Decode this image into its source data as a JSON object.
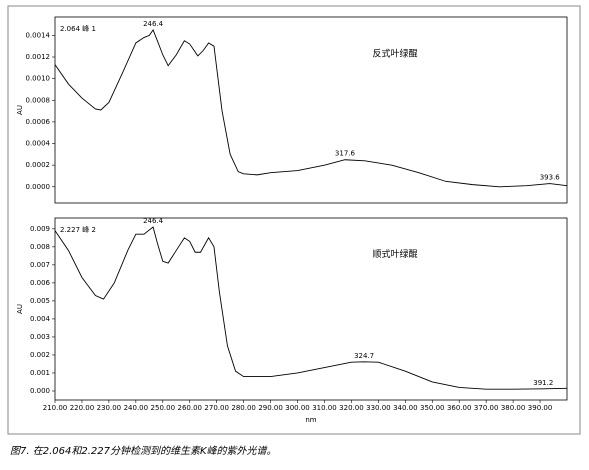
{
  "chart_data": [
    {
      "type": "line",
      "title": "2.064 峰 1",
      "ylabel": "AU",
      "x": [
        210,
        215,
        220,
        225,
        227,
        230,
        235,
        240,
        243,
        245,
        246.4,
        248,
        250,
        252,
        255,
        258,
        260,
        263,
        265,
        267,
        269,
        270,
        272,
        275,
        278,
        280,
        285,
        290,
        300,
        310,
        317.6,
        325,
        335,
        345,
        355,
        365,
        375,
        385,
        393.6,
        400
      ],
      "series": [
        {
          "name": "反式叶绿醌",
          "color": "#000000",
          "values": [
            0.00113,
            0.00095,
            0.00082,
            0.00072,
            0.00071,
            0.00078,
            0.00105,
            0.00133,
            0.00138,
            0.0014,
            0.00145,
            0.00135,
            0.00122,
            0.00112,
            0.00122,
            0.00135,
            0.00132,
            0.00121,
            0.00126,
            0.00133,
            0.0013,
            0.0011,
            0.0007,
            0.0003,
            0.00014,
            0.00012,
            0.00011,
            0.00013,
            0.00015,
            0.0002,
            0.00025,
            0.00024,
            0.0002,
            0.00013,
            5e-05,
            2e-05,
            0.0,
            1e-05,
            3e-05,
            1e-05
          ]
        }
      ],
      "peak_labels": [
        246.4,
        317.6,
        393.6
      ],
      "xlim": [
        210,
        400
      ],
      "ylim": [
        -0.00015,
        0.00157
      ],
      "yticks": [
        {
          "value": 0,
          "label": "0.0000"
        },
        {
          "value": 0.0002,
          "label": "0.0002"
        },
        {
          "value": 0.0004,
          "label": "0.0004"
        },
        {
          "value": 0.0006,
          "label": "0.0006"
        },
        {
          "value": 0.0008,
          "label": "0.0008"
        },
        {
          "value": 0.001,
          "label": "0.0010"
        },
        {
          "value": 0.0012,
          "label": "0.0012"
        },
        {
          "value": 0.0014,
          "label": "0.0014"
        }
      ]
    },
    {
      "type": "line",
      "title": "2.227 峰 2",
      "ylabel": "AU",
      "xlabel": "nm",
      "x": [
        210,
        215,
        220,
        225,
        228,
        232,
        237,
        240,
        243,
        246.4,
        248,
        250,
        252,
        255,
        258,
        260,
        262,
        264,
        267,
        269,
        271,
        274,
        277,
        280,
        290,
        300,
        310,
        320,
        324.7,
        330,
        340,
        350,
        360,
        370,
        380,
        391.2,
        400
      ],
      "series": [
        {
          "name": "顺式叶绿醌",
          "color": "#000000",
          "values": [
            0.0089,
            0.0078,
            0.0063,
            0.0053,
            0.0051,
            0.006,
            0.0078,
            0.0087,
            0.0087,
            0.0091,
            0.0082,
            0.0072,
            0.0071,
            0.0078,
            0.0085,
            0.0083,
            0.0077,
            0.0077,
            0.0085,
            0.008,
            0.0055,
            0.0025,
            0.0011,
            0.0008,
            0.0008,
            0.001,
            0.0013,
            0.0016,
            0.00162,
            0.0016,
            0.0011,
            0.0005,
            0.0002,
            0.0001,
            0.0001,
            0.00012,
            0.00015
          ]
        }
      ],
      "peak_labels": [
        246.4,
        324.7,
        391.2
      ],
      "xlim": [
        210,
        400
      ],
      "ylim": [
        -0.0005,
        0.0096
      ],
      "yticks": [
        {
          "value": 0,
          "label": "0.000"
        },
        {
          "value": 0.001,
          "label": "0.001"
        },
        {
          "value": 0.002,
          "label": "0.002"
        },
        {
          "value": 0.003,
          "label": "0.003"
        },
        {
          "value": 0.004,
          "label": "0.004"
        },
        {
          "value": 0.005,
          "label": "0.005"
        },
        {
          "value": 0.006,
          "label": "0.006"
        },
        {
          "value": 0.007,
          "label": "0.007"
        },
        {
          "value": 0.008,
          "label": "0.008"
        },
        {
          "value": 0.009,
          "label": "0.009"
        }
      ],
      "xticks": [
        {
          "value": 210,
          "label": "210.00"
        },
        {
          "value": 220,
          "label": "220.00"
        },
        {
          "value": 230,
          "label": "230.00"
        },
        {
          "value": 240,
          "label": "240.00"
        },
        {
          "value": 250,
          "label": "250.00"
        },
        {
          "value": 260,
          "label": "260.00"
        },
        {
          "value": 270,
          "label": "270.00"
        },
        {
          "value": 280,
          "label": "280.00"
        },
        {
          "value": 290,
          "label": "290.00"
        },
        {
          "value": 300,
          "label": "300.00"
        },
        {
          "value": 310,
          "label": "310.00"
        },
        {
          "value": 320,
          "label": "320.00"
        },
        {
          "value": 330,
          "label": "330.00"
        },
        {
          "value": 340,
          "label": "340.00"
        },
        {
          "value": 350,
          "label": "350.00"
        },
        {
          "value": 360,
          "label": "360.00"
        },
        {
          "value": 370,
          "label": "370.00"
        },
        {
          "value": 380,
          "label": "380.00"
        },
        {
          "value": 390,
          "label": "390.00"
        }
      ]
    }
  ],
  "caption": "图7. 在2.064和2.227分钟检测到的维生素K峰的紫外光谱。"
}
